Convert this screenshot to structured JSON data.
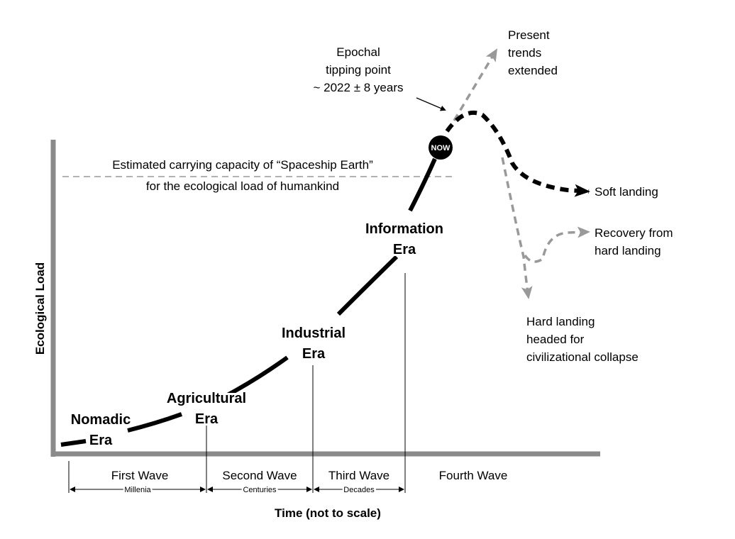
{
  "axes": {
    "y_label": "Ecological Load",
    "x_label": "Time (not to scale)"
  },
  "carrying_capacity": {
    "lines": [
      "Estimated carrying capacity of “Spaceship Earth”",
      "for the ecological load of humankind"
    ]
  },
  "tipping_point": {
    "lines": [
      "Epochal",
      "tipping point",
      "~ 2022 ± 8 years"
    ]
  },
  "now_badge": "NOW",
  "eras": [
    {
      "lines": [
        "Nomadic",
        "Era"
      ]
    },
    {
      "lines": [
        "Agricultural",
        "Era"
      ]
    },
    {
      "lines": [
        "Industrial",
        "Era"
      ]
    },
    {
      "lines": [
        "Information",
        "Era"
      ]
    }
  ],
  "scenarios": [
    {
      "lines": [
        "Present",
        "trends",
        "extended"
      ]
    },
    {
      "lines": [
        "Soft landing"
      ]
    },
    {
      "lines": [
        "Recovery from",
        "hard landing"
      ]
    },
    {
      "lines": [
        "Hard landing",
        "headed for",
        "civilizational collapse"
      ]
    }
  ],
  "waves": [
    "First Wave",
    "Second Wave",
    "Third Wave",
    "Fourth Wave"
  ],
  "spans": [
    "Millenia",
    "Centuries",
    "Decades"
  ]
}
